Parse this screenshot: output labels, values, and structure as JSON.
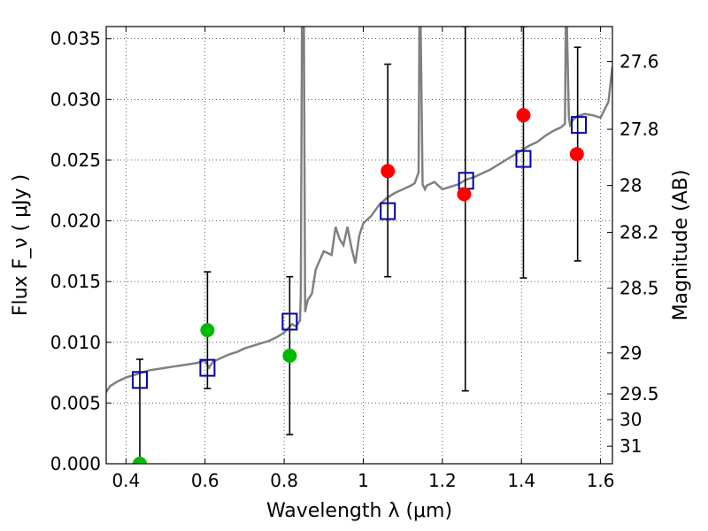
{
  "chart_data": {
    "type": "scatter",
    "xlabel": "Wavelength  λ (μm)",
    "ylabel": "Flux  F_ν  ( μJy )",
    "ylabel_right": "Magnitude (AB)",
    "xlim": [
      0.35,
      1.63
    ],
    "ylim": [
      0.0,
      0.036
    ],
    "grid": true,
    "x_ticks": [
      0.4,
      0.6,
      0.8,
      1.0,
      1.2,
      1.4,
      1.6
    ],
    "x_tick_labels": [
      "0.4",
      "0.6",
      "0.8",
      "1",
      "1.2",
      "1.4",
      "1.6"
    ],
    "y_ticks": [
      0.0,
      0.005,
      0.01,
      0.015,
      0.02,
      0.025,
      0.03,
      0.035
    ],
    "y_tick_labels": [
      "0.000",
      "0.005",
      "0.010",
      "0.015",
      "0.020",
      "0.025",
      "0.030",
      "0.035"
    ],
    "mag_ticks": [
      27.6,
      27.8,
      28,
      28.2,
      28.5,
      29,
      29.5,
      30,
      31
    ],
    "mag_tick_labels": [
      "27.6",
      "27.8",
      "28",
      "28.2",
      "28.5",
      "29",
      "29.5",
      "30",
      "31"
    ],
    "series": [
      {
        "marker": "square-open",
        "color": "#0000aa",
        "x": [
          0.435,
          0.606,
          0.814,
          1.062,
          1.26,
          1.405,
          1.545
        ],
        "y": [
          0.0069,
          0.0079,
          0.0117,
          0.0208,
          0.0233,
          0.0251,
          0.0279
        ]
      },
      {
        "marker": "circle",
        "color": "#ff0000",
        "x": [
          1.062,
          1.255,
          1.405,
          1.54
        ],
        "y": [
          0.0241,
          0.0222,
          0.0287,
          0.0255
        ]
      },
      {
        "marker": "circle",
        "color": "#00bb00",
        "x": [
          0.435,
          0.606,
          0.814
        ],
        "y": [
          0.0,
          0.011,
          0.0089
        ]
      },
      {
        "marker": "errorbar",
        "color": "#000000",
        "x": [
          0.435,
          0.606,
          0.814,
          1.062,
          1.258,
          1.405,
          1.542
        ],
        "ylow": [
          0.0,
          0.0062,
          0.0024,
          0.0154,
          0.006,
          0.0153,
          0.0167
        ],
        "yhigh": [
          0.0086,
          0.0158,
          0.0154,
          0.0329,
          0.036,
          0.036,
          0.0343
        ]
      },
      {
        "marker": "line",
        "color": "#808080",
        "x": [
          0.35,
          0.36,
          0.38,
          0.4,
          0.42,
          0.44,
          0.46,
          0.48,
          0.5,
          0.52,
          0.54,
          0.56,
          0.58,
          0.6,
          0.61,
          0.62,
          0.64,
          0.66,
          0.68,
          0.7,
          0.72,
          0.74,
          0.76,
          0.78,
          0.8,
          0.82,
          0.83,
          0.84,
          0.842,
          0.845,
          0.85,
          0.853,
          0.856,
          0.86,
          0.87,
          0.88,
          0.9,
          0.92,
          0.93,
          0.94,
          0.95,
          0.96,
          0.97,
          0.98,
          0.99,
          1.0,
          1.02,
          1.04,
          1.06,
          1.08,
          1.1,
          1.12,
          1.13,
          1.14,
          1.142,
          1.145,
          1.15,
          1.153,
          1.156,
          1.16,
          1.18,
          1.2,
          1.22,
          1.24,
          1.26,
          1.28,
          1.3,
          1.32,
          1.34,
          1.36,
          1.38,
          1.4,
          1.42,
          1.44,
          1.46,
          1.48,
          1.5,
          1.51,
          1.512,
          1.515,
          1.52,
          1.523,
          1.53,
          1.54,
          1.56,
          1.58,
          1.6,
          1.62,
          1.63
        ],
        "y": [
          0.0059,
          0.0064,
          0.0068,
          0.0071,
          0.0073,
          0.0075,
          0.0077,
          0.0078,
          0.0079,
          0.008,
          0.0081,
          0.0082,
          0.0083,
          0.0085,
          0.0079,
          0.0084,
          0.0087,
          0.009,
          0.0092,
          0.0095,
          0.0097,
          0.0099,
          0.0101,
          0.0104,
          0.0108,
          0.0115,
          0.0113,
          0.0118,
          0.014,
          0.036,
          0.036,
          0.0125,
          0.013,
          0.0135,
          0.014,
          0.016,
          0.0175,
          0.0172,
          0.0195,
          0.0185,
          0.018,
          0.0195,
          0.0178,
          0.0165,
          0.0188,
          0.0198,
          0.0204,
          0.0213,
          0.0219,
          0.0223,
          0.0226,
          0.0229,
          0.0231,
          0.024,
          0.036,
          0.036,
          0.023,
          0.0228,
          0.0226,
          0.0229,
          0.0232,
          0.0226,
          0.0228,
          0.023,
          0.0234,
          0.0236,
          0.0239,
          0.0242,
          0.0246,
          0.025,
          0.0254,
          0.0258,
          0.0262,
          0.0265,
          0.027,
          0.0274,
          0.0277,
          0.028,
          0.036,
          0.036,
          0.0285,
          0.0279,
          0.0283,
          0.0286,
          0.0288,
          0.0287,
          0.0285,
          0.0298,
          0.0327
        ]
      }
    ]
  }
}
